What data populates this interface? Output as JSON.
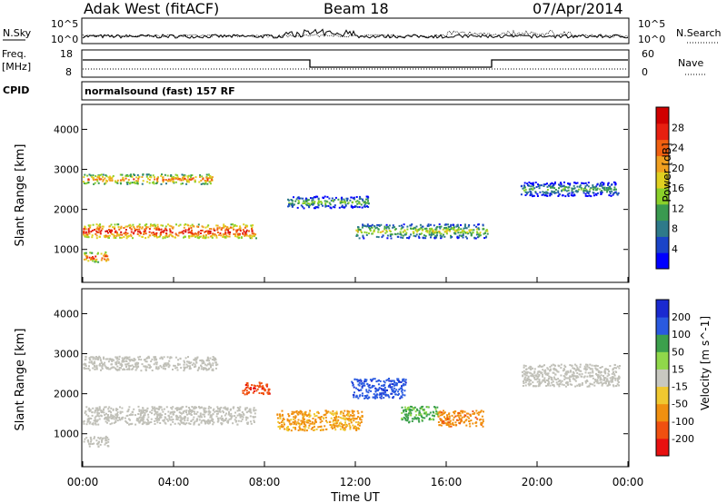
{
  "header": {
    "station": "Adak West (fitACF)",
    "beam": "Beam 18",
    "date": "07/Apr/2014"
  },
  "panels": {
    "nsky": {
      "left_label": "N.Sky",
      "left_ticks": [
        "10^5",
        "10^0"
      ],
      "right_label": "N.Search",
      "right_ticks": [
        "10^5",
        "10^0"
      ]
    },
    "freq": {
      "left_label_1": "Freq.",
      "left_label_2": "[MHz]",
      "left_ticks": [
        "18",
        "8"
      ],
      "right_label": "Nave",
      "right_ticks": [
        "60",
        "0"
      ]
    },
    "cpid": {
      "label": "CPID",
      "value": "normalsound (fast) 157 RF"
    }
  },
  "colors": {
    "power": [
      "#0000ff",
      "#1a44c8",
      "#2e7a8a",
      "#3a9a50",
      "#8ad02a",
      "#e0d020",
      "#f0a020",
      "#f06010",
      "#e82010",
      "#d00000"
    ],
    "velocity": [
      "#1a2ad0",
      "#2a5ae0",
      "#3ca04c",
      "#90d84a",
      "#c8c8c0",
      "#f0c830",
      "#f09010",
      "#f05010",
      "#e81010"
    ],
    "ground_scatter": "#c0c0b8"
  },
  "chart_data": [
    {
      "type": "heatmap",
      "name": "power",
      "ylabel": "Slant Range [km]",
      "xlabel": "",
      "y_ticks": [
        1000,
        2000,
        3000,
        4000
      ],
      "ylim": [
        200,
        4600
      ],
      "colorbar_label": "Power [dB]",
      "colorbar_ticks": [
        "4",
        "8",
        "12",
        "16",
        "20",
        "24",
        "28"
      ],
      "bands": [
        {
          "t0": 0.0,
          "t1": 7.6,
          "r0": 1300,
          "r1": 1650,
          "level": 0.9
        },
        {
          "t0": 0.0,
          "t1": 5.7,
          "r0": 2650,
          "r1": 2900,
          "level": 0.75
        },
        {
          "t0": 0.0,
          "t1": 1.1,
          "r0": 700,
          "r1": 950,
          "level": 0.85
        },
        {
          "t0": 9.0,
          "t1": 12.6,
          "r0": 2050,
          "r1": 2350,
          "level": 0.45
        },
        {
          "t0": 12.0,
          "t1": 17.8,
          "r0": 1300,
          "r1": 1650,
          "level": 0.55
        },
        {
          "t0": 19.2,
          "t1": 23.6,
          "r0": 2350,
          "r1": 2700,
          "level": 0.4
        }
      ]
    },
    {
      "type": "heatmap",
      "name": "velocity",
      "ylabel": "Slant Range [km]",
      "xlabel": "Time UT",
      "x_ticks": [
        "00:00",
        "04:00",
        "08:00",
        "12:00",
        "16:00",
        "20:00",
        "00:00"
      ],
      "y_ticks": [
        1000,
        2000,
        3000,
        4000
      ],
      "ylim": [
        200,
        4600
      ],
      "colorbar_label": "Velocity [m s^-1]",
      "colorbar_ticks": [
        "200",
        "100",
        "50",
        "15",
        "-15",
        "-50",
        "-100",
        "-200"
      ],
      "bands": [
        {
          "t0": 0.0,
          "t1": 7.6,
          "r0": 1250,
          "r1": 1700,
          "vel": 0
        },
        {
          "t0": 0.0,
          "t1": 5.9,
          "r0": 2600,
          "r1": 2950,
          "vel": 0
        },
        {
          "t0": 0.0,
          "t1": 1.1,
          "r0": 700,
          "r1": 950,
          "vel": 0
        },
        {
          "t0": 7.0,
          "t1": 8.2,
          "r0": 2000,
          "r1": 2300,
          "vel": -180
        },
        {
          "t0": 8.5,
          "t1": 12.3,
          "r0": 1100,
          "r1": 1600,
          "vel": -60
        },
        {
          "t0": 11.8,
          "t1": 14.2,
          "r0": 1900,
          "r1": 2400,
          "vel": 180
        },
        {
          "t0": 14.0,
          "t1": 15.6,
          "r0": 1300,
          "r1": 1700,
          "vel": 60
        },
        {
          "t0": 15.6,
          "t1": 17.6,
          "r0": 1200,
          "r1": 1600,
          "vel": -80
        },
        {
          "t0": 19.3,
          "t1": 23.6,
          "r0": 2200,
          "r1": 2750,
          "vel": 0
        }
      ]
    }
  ]
}
